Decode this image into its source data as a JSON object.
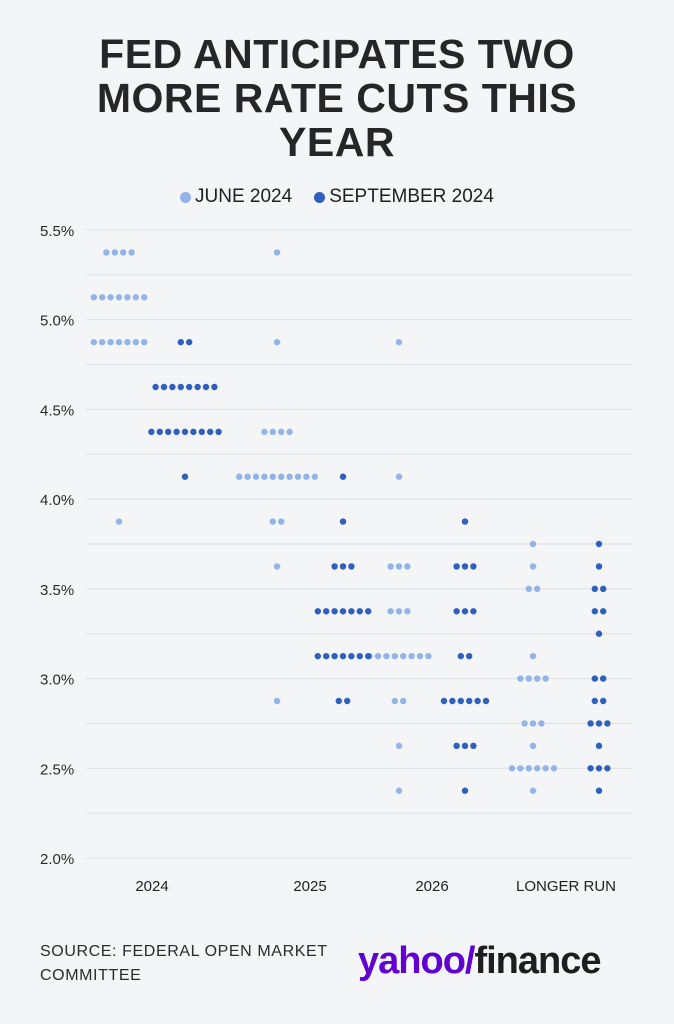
{
  "title": "FED ANTICIPATES TWO MORE RATE CUTS THIS YEAR",
  "legend": [
    {
      "label": "JUNE 2024",
      "color": "#93b4e8"
    },
    {
      "label": "SEPTEMBER 2024",
      "color": "#2f5fbf"
    }
  ],
  "source": "SOURCE: FEDERAL OPEN MARKET COMMITTEE",
  "logo": {
    "part1": "yahoo/",
    "part2": "finance"
  },
  "chart_data": {
    "type": "scatter",
    "subtype": "dot plot",
    "categories": [
      "2024",
      "2025",
      "2026",
      "LONGER RUN"
    ],
    "y_ticks": [
      "5.5%",
      "5.0%",
      "4.5%",
      "4.0%",
      "3.5%",
      "3.0%",
      "2.5%",
      "2.0%"
    ],
    "ylim": [
      2.0,
      5.5
    ],
    "grid": true,
    "legend_position": "top-center",
    "series": [
      {
        "name": "JUNE 2024",
        "color": "#93b4e8",
        "points": [
          [
            [
              5.375,
              4
            ],
            [
              5.125,
              7
            ],
            [
              4.875,
              7
            ],
            [
              3.875,
              1
            ]
          ],
          [
            [
              5.375,
              1
            ],
            [
              4.875,
              1
            ],
            [
              4.375,
              4
            ],
            [
              4.125,
              10
            ],
            [
              3.875,
              2
            ],
            [
              3.625,
              1
            ],
            [
              2.875,
              1
            ]
          ],
          [
            [
              4.875,
              1
            ],
            [
              4.125,
              1
            ],
            [
              3.625,
              3
            ],
            [
              3.375,
              3
            ],
            [
              3.125,
              8
            ],
            [
              2.875,
              2
            ],
            [
              2.625,
              1
            ],
            [
              2.375,
              1
            ]
          ],
          [
            [
              3.75,
              1
            ],
            [
              3.625,
              1
            ],
            [
              3.5,
              2
            ],
            [
              3.125,
              1
            ],
            [
              3.0,
              4
            ],
            [
              2.75,
              3
            ],
            [
              2.625,
              1
            ],
            [
              2.5,
              6
            ],
            [
              2.375,
              1
            ]
          ]
        ]
      },
      {
        "name": "SEPTEMBER 2024",
        "color": "#2f5fbf",
        "points": [
          [
            [
              4.875,
              2
            ],
            [
              4.625,
              8
            ],
            [
              4.375,
              9
            ],
            [
              4.125,
              1
            ]
          ],
          [
            [
              4.125,
              1
            ],
            [
              3.875,
              1
            ],
            [
              3.625,
              3
            ],
            [
              3.375,
              7
            ],
            [
              3.125,
              7
            ],
            [
              2.875,
              2
            ]
          ],
          [
            [
              3.875,
              1
            ],
            [
              3.625,
              3
            ],
            [
              3.375,
              3
            ],
            [
              3.125,
              2
            ],
            [
              2.875,
              6
            ],
            [
              2.625,
              3
            ],
            [
              2.375,
              1
            ]
          ],
          [
            [
              3.75,
              1
            ],
            [
              3.625,
              1
            ],
            [
              3.5,
              2
            ],
            [
              3.375,
              2
            ],
            [
              3.25,
              1
            ],
            [
              3.0,
              2
            ],
            [
              2.875,
              2
            ],
            [
              2.75,
              3
            ],
            [
              2.625,
              1
            ],
            [
              2.5,
              3
            ],
            [
              2.375,
              1
            ]
          ]
        ]
      }
    ]
  }
}
